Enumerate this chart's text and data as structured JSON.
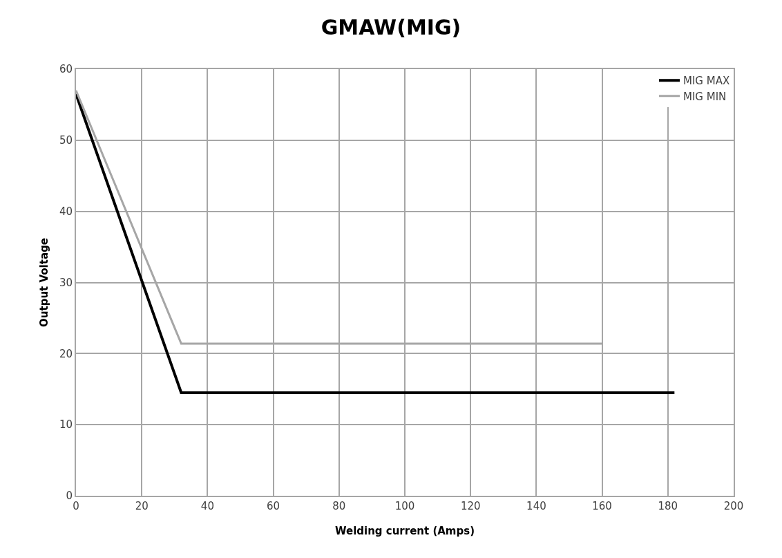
{
  "chart_data": {
    "type": "line",
    "title": "GMAW(MIG)",
    "xlabel": "Welding current (Amps)",
    "ylabel": "Output Voltage",
    "series": [
      {
        "name": "MIG MAX",
        "color": "#000000",
        "x": [
          0,
          32,
          182
        ],
        "values": [
          56.5,
          14.5,
          14.5
        ]
      },
      {
        "name": "MIG MIN",
        "color": "#a6a6a6",
        "x": [
          0,
          32,
          160
        ],
        "values": [
          57,
          21.4,
          21.4
        ]
      }
    ],
    "xlim": [
      0,
      200
    ],
    "xticks": [
      0,
      20,
      40,
      60,
      80,
      100,
      120,
      140,
      160,
      180,
      200
    ],
    "ylim": [
      0,
      60
    ],
    "yticks": [
      0,
      10,
      20,
      30,
      40,
      50,
      60
    ],
    "grid": true,
    "legend": "top right",
    "marker": "none",
    "line_style": "solid"
  }
}
